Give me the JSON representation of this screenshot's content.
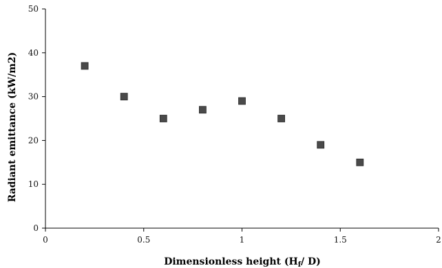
{
  "chart_data": {
    "type": "scatter",
    "xlabel_main": "Dimensionless height (H",
    "xlabel_sub": "f",
    "xlabel_end": "/ D)",
    "ylabel": "Radiant emittance (kW/m2)",
    "xlim": [
      0,
      2
    ],
    "ylim": [
      0,
      50
    ],
    "x_ticks": [
      0,
      0.5,
      1,
      1.5,
      2
    ],
    "x_tick_labels": [
      "0",
      "0.5",
      "1",
      "1.5",
      "2"
    ],
    "y_ticks": [
      0,
      10,
      20,
      30,
      40,
      50
    ],
    "y_tick_labels": [
      "0",
      "10",
      "20",
      "30",
      "40",
      "50"
    ],
    "grid": false,
    "marker": "square",
    "marker_color": "#4a4a4a",
    "series": [
      {
        "x": [
          0.2,
          0.4,
          0.6,
          0.8,
          1.0,
          1.2,
          1.4,
          1.6
        ],
        "y": [
          37,
          30,
          25,
          27,
          29,
          25,
          19,
          15
        ]
      }
    ]
  }
}
